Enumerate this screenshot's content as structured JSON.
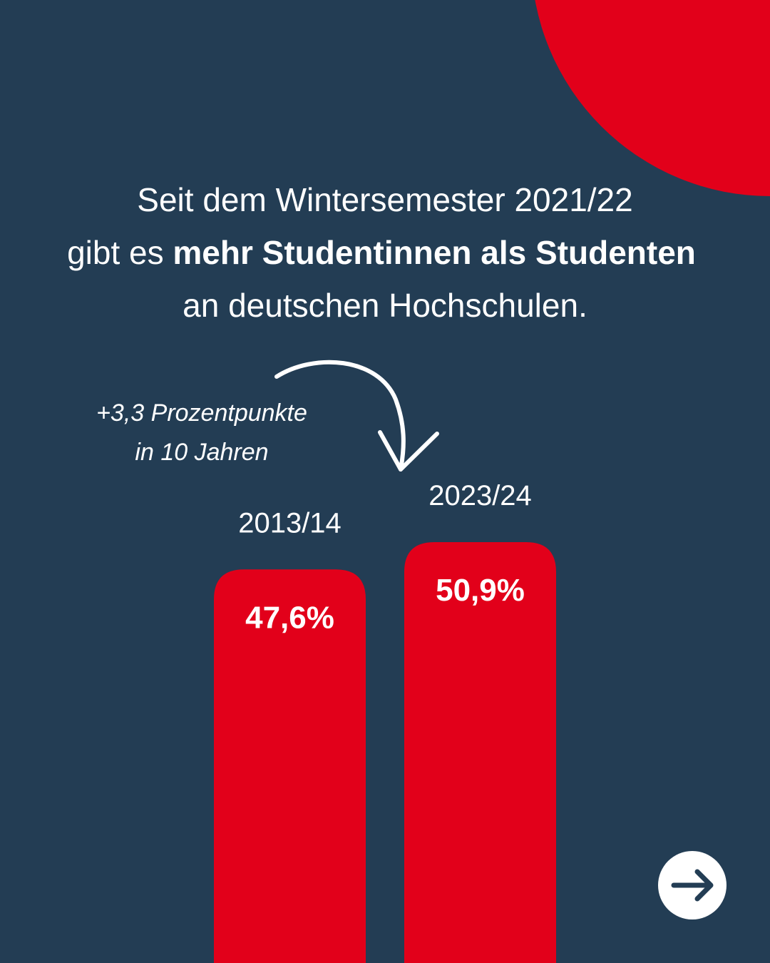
{
  "chart_data": {
    "type": "bar",
    "title": [
      "Seit dem Wintersemester 2021/22",
      "gibt es",
      "mehr Studentinnen als Studenten",
      "an deutschen Hochschulen."
    ],
    "annotation": [
      "+3,3 Prozentpunkte",
      "in 10 Jahren"
    ],
    "categories": [
      "2013/14",
      "2023/24"
    ],
    "values": [
      47.6,
      50.9
    ],
    "value_labels": [
      "47,6%",
      "50,9%"
    ],
    "color": "#e2001a"
  }
}
